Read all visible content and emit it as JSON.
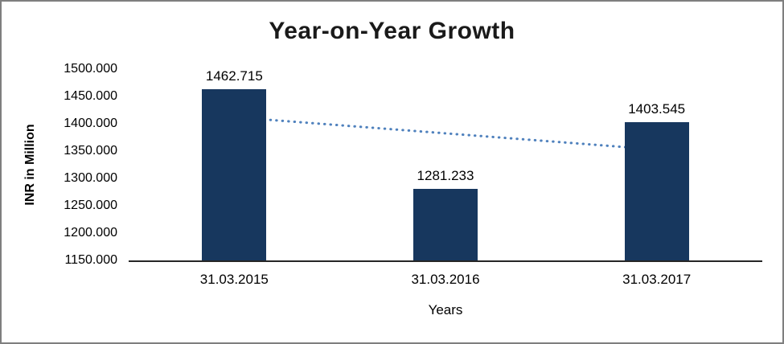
{
  "chart_data": {
    "type": "bar",
    "title": "Year-on-Year Growth",
    "categories": [
      "31.03.2015",
      "31.03.2016",
      "31.03.2017"
    ],
    "values": [
      1462.715,
      1281.233,
      1403.545
    ],
    "data_labels": [
      "1462.715",
      "1281.233",
      "1403.545"
    ],
    "xlabel": "Years",
    "ylabel": "INR in Million",
    "ylim": [
      1150,
      1500
    ],
    "ytick_step": 50,
    "ytick_labels": [
      "1150.000",
      "1200.000",
      "1250.000",
      "1300.000",
      "1350.000",
      "1400.000",
      "1450.000",
      "1500.000"
    ],
    "grid": false,
    "legend_position": "none",
    "bar_color": "#17375E",
    "axis_color": "#262626",
    "frame_border_color": "#7f7f7f",
    "trendline": {
      "style": "dotted",
      "color": "#4F81BD",
      "start_value": 1412.1,
      "end_value": 1352.9
    }
  }
}
